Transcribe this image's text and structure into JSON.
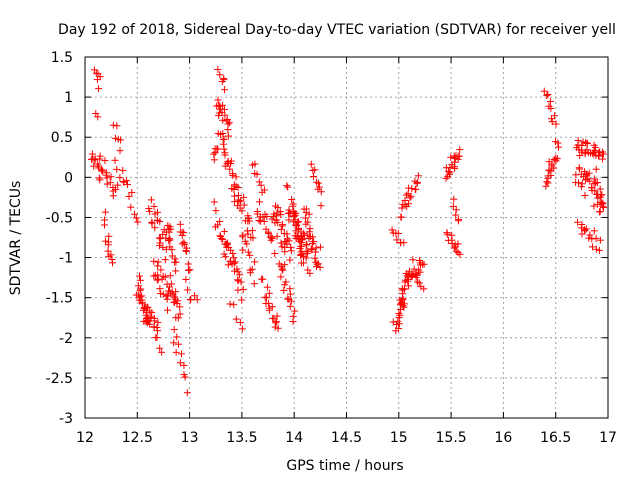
{
  "chart_data": {
    "type": "scatter",
    "title": "Day 192 of 2018, Sidereal Day-to-day VTEC variation (SDTVAR) for receiver yell",
    "xlabel": "GPS time / hours",
    "ylabel": "SDTVAR / TECUs",
    "xlim": [
      12,
      17
    ],
    "ylim": [
      -3,
      1.5
    ],
    "x_ticks": [
      12,
      12.5,
      13,
      13.5,
      14,
      14.5,
      15,
      15.5,
      16,
      16.5,
      17
    ],
    "x_tick_labels": [
      "12",
      "12.5",
      "13",
      "13.5",
      "14",
      "14.5",
      "15",
      "15.5",
      "16",
      "16.5",
      "17"
    ],
    "y_ticks": [
      -3,
      -2.5,
      -2,
      -1.5,
      -1,
      -0.5,
      0,
      0.5,
      1,
      1.5
    ],
    "y_tick_labels": [
      "-3",
      "-2.5",
      "-2",
      "-1.5",
      "-1",
      "-0.5",
      "0",
      "0.5",
      "1",
      "1.5"
    ],
    "grid": true,
    "marker": "+",
    "marker_color": "#ff0000",
    "series": [
      {
        "name": "SDTVAR",
        "clusters": [
          {
            "id": "c01",
            "x0": 12.06,
            "x1": 12.15,
            "y0": 0.35,
            "y1": 0.0,
            "spread": 0.1,
            "n": 12
          },
          {
            "id": "c02",
            "x0": 12.1,
            "x1": 12.14,
            "y0": 1.38,
            "y1": 1.15,
            "spread": 0.06,
            "n": 6
          },
          {
            "id": "c03",
            "x0": 12.1,
            "x1": 12.12,
            "y0": 0.78,
            "y1": 0.75,
            "spread": 0.03,
            "n": 2
          },
          {
            "id": "c04",
            "x0": 12.14,
            "x1": 12.3,
            "y0": 0.2,
            "y1": -0.2,
            "spread": 0.12,
            "n": 16
          },
          {
            "id": "c05",
            "x0": 12.18,
            "x1": 12.26,
            "y0": -0.55,
            "y1": -1.05,
            "spread": 0.12,
            "n": 12
          },
          {
            "id": "c06",
            "x0": 12.28,
            "x1": 12.34,
            "y0": 0.65,
            "y1": 0.35,
            "spread": 0.08,
            "n": 6
          },
          {
            "id": "c07",
            "x0": 12.3,
            "x1": 12.5,
            "y0": 0.1,
            "y1": -0.45,
            "spread": 0.15,
            "n": 14
          },
          {
            "id": "c08",
            "x0": 12.5,
            "x1": 12.62,
            "y0": -1.3,
            "y1": -1.85,
            "spread": 0.2,
            "n": 28
          },
          {
            "id": "c09",
            "x0": 12.58,
            "x1": 12.72,
            "y0": -1.6,
            "y1": -2.05,
            "spread": 0.18,
            "n": 20
          },
          {
            "id": "c10",
            "x0": 12.62,
            "x1": 12.78,
            "y0": -0.35,
            "y1": -0.9,
            "spread": 0.18,
            "n": 22
          },
          {
            "id": "c11",
            "x0": 12.66,
            "x1": 12.8,
            "y0": -1.05,
            "y1": -1.55,
            "spread": 0.18,
            "n": 20
          },
          {
            "id": "c12",
            "x0": 12.78,
            "x1": 12.86,
            "y0": -0.55,
            "y1": -1.1,
            "spread": 0.16,
            "n": 16
          },
          {
            "id": "c13",
            "x0": 12.8,
            "x1": 12.9,
            "y0": -1.25,
            "y1": -1.75,
            "spread": 0.18,
            "n": 18
          },
          {
            "id": "c14",
            "x0": 12.84,
            "x1": 12.96,
            "y0": -1.9,
            "y1": -2.5,
            "spread": 0.1,
            "n": 10
          },
          {
            "id": "c15",
            "x0": 12.9,
            "x1": 13.0,
            "y0": -0.65,
            "y1": -1.1,
            "spread": 0.14,
            "n": 14
          },
          {
            "id": "c16",
            "x0": 12.96,
            "x1": 13.06,
            "y0": -1.35,
            "y1": -1.6,
            "spread": 0.1,
            "n": 6
          },
          {
            "id": "c17",
            "x0": 12.98,
            "x1": 12.99,
            "y0": -2.7,
            "y1": -2.7,
            "spread": 0.02,
            "n": 1
          },
          {
            "id": "c18",
            "x0": 13.22,
            "x1": 13.32,
            "y0": 0.25,
            "y1": 0.55,
            "spread": 0.1,
            "n": 10
          },
          {
            "id": "c19",
            "x0": 13.28,
            "x1": 13.34,
            "y0": 1.32,
            "y1": 1.15,
            "spread": 0.06,
            "n": 6
          },
          {
            "id": "c20",
            "x0": 13.26,
            "x1": 13.38,
            "y0": 0.95,
            "y1": 0.6,
            "spread": 0.12,
            "n": 18
          },
          {
            "id": "c21",
            "x0": 13.32,
            "x1": 13.44,
            "y0": 0.35,
            "y1": -0.15,
            "spread": 0.15,
            "n": 20
          },
          {
            "id": "c22",
            "x0": 13.24,
            "x1": 13.36,
            "y0": -0.45,
            "y1": -0.95,
            "spread": 0.15,
            "n": 14
          },
          {
            "id": "c23",
            "x0": 13.34,
            "x1": 13.5,
            "y0": -0.8,
            "y1": -1.45,
            "spread": 0.16,
            "n": 24
          },
          {
            "id": "c24",
            "x0": 13.4,
            "x1": 13.5,
            "y0": -1.55,
            "y1": -1.9,
            "spread": 0.08,
            "n": 5
          },
          {
            "id": "c25",
            "x0": 13.44,
            "x1": 13.6,
            "y0": -0.15,
            "y1": -0.75,
            "spread": 0.16,
            "n": 22
          },
          {
            "id": "c26",
            "x0": 13.5,
            "x1": 13.62,
            "y0": -0.8,
            "y1": -1.2,
            "spread": 0.14,
            "n": 12
          },
          {
            "id": "c27",
            "x0": 13.6,
            "x1": 13.72,
            "y0": 0.15,
            "y1": -0.15,
            "spread": 0.08,
            "n": 8
          },
          {
            "id": "c28",
            "x0": 13.64,
            "x1": 13.8,
            "y0": -0.3,
            "y1": -0.9,
            "spread": 0.14,
            "n": 18
          },
          {
            "id": "c29",
            "x0": 13.7,
            "x1": 13.84,
            "y0": -1.35,
            "y1": -1.9,
            "spread": 0.14,
            "n": 18
          },
          {
            "id": "c30",
            "x0": 13.8,
            "x1": 13.96,
            "y0": -0.4,
            "y1": -0.9,
            "spread": 0.2,
            "n": 30
          },
          {
            "id": "c31",
            "x0": 13.86,
            "x1": 14.0,
            "y0": -1.0,
            "y1": -1.75,
            "spread": 0.15,
            "n": 18
          },
          {
            "id": "c32",
            "x0": 13.94,
            "x1": 14.1,
            "y0": -0.3,
            "y1": -0.95,
            "spread": 0.2,
            "n": 34
          },
          {
            "id": "c33",
            "x0": 14.0,
            "x1": 14.14,
            "y0": -0.5,
            "y1": -1.05,
            "spread": 0.18,
            "n": 26
          },
          {
            "id": "c34",
            "x0": 14.1,
            "x1": 14.24,
            "y0": -0.45,
            "y1": -1.05,
            "spread": 0.18,
            "n": 26
          },
          {
            "id": "c35",
            "x0": 14.16,
            "x1": 14.26,
            "y0": 0.2,
            "y1": -0.3,
            "spread": 0.08,
            "n": 10
          },
          {
            "id": "c36",
            "x0": 14.94,
            "x1": 15.04,
            "y0": -0.65,
            "y1": -0.85,
            "spread": 0.08,
            "n": 8
          },
          {
            "id": "c37",
            "x0": 14.96,
            "x1": 15.06,
            "y0": -1.9,
            "y1": -1.5,
            "spread": 0.1,
            "n": 18
          },
          {
            "id": "c38",
            "x0": 15.02,
            "x1": 15.14,
            "y0": -1.5,
            "y1": -1.1,
            "spread": 0.1,
            "n": 20
          },
          {
            "id": "c39",
            "x0": 15.02,
            "x1": 15.1,
            "y0": -0.5,
            "y1": -0.2,
            "spread": 0.08,
            "n": 10
          },
          {
            "id": "c40",
            "x0": 15.1,
            "x1": 15.2,
            "y0": -0.25,
            "y1": 0.0,
            "spread": 0.08,
            "n": 10
          },
          {
            "id": "c41",
            "x0": 15.12,
            "x1": 15.24,
            "y0": -1.25,
            "y1": -1.05,
            "spread": 0.08,
            "n": 14
          },
          {
            "id": "c42",
            "x0": 15.18,
            "x1": 15.24,
            "y0": -1.3,
            "y1": -1.4,
            "spread": 0.05,
            "n": 4
          },
          {
            "id": "c43",
            "x0": 15.46,
            "x1": 15.58,
            "y0": 0.05,
            "y1": 0.3,
            "spread": 0.1,
            "n": 20
          },
          {
            "id": "c44",
            "x0": 15.46,
            "x1": 15.56,
            "y0": -0.7,
            "y1": -0.9,
            "spread": 0.08,
            "n": 10
          },
          {
            "id": "c45",
            "x0": 15.52,
            "x1": 15.58,
            "y0": -0.25,
            "y1": -0.55,
            "spread": 0.06,
            "n": 6
          },
          {
            "id": "c46",
            "x0": 15.54,
            "x1": 15.58,
            "y0": -0.9,
            "y1": -0.95,
            "spread": 0.04,
            "n": 3
          },
          {
            "id": "c47",
            "x0": 16.4,
            "x1": 16.5,
            "y0": 1.02,
            "y1": 0.7,
            "spread": 0.08,
            "n": 10
          },
          {
            "id": "c48",
            "x0": 16.4,
            "x1": 16.52,
            "y0": -0.1,
            "y1": 0.4,
            "spread": 0.12,
            "n": 20
          },
          {
            "id": "c49",
            "x0": 16.7,
            "x1": 16.96,
            "y0": 0.4,
            "y1": 0.3,
            "spread": 0.08,
            "n": 30
          },
          {
            "id": "c50",
            "x0": 16.7,
            "x1": 16.96,
            "y0": 0.1,
            "y1": -0.3,
            "spread": 0.2,
            "n": 36
          },
          {
            "id": "c51",
            "x0": 16.72,
            "x1": 16.92,
            "y0": -0.55,
            "y1": -0.85,
            "spread": 0.12,
            "n": 16
          },
          {
            "id": "c52",
            "x0": 16.88,
            "x1": 16.96,
            "y0": 0.0,
            "y1": -0.45,
            "spread": 0.12,
            "n": 8
          }
        ]
      }
    ]
  }
}
